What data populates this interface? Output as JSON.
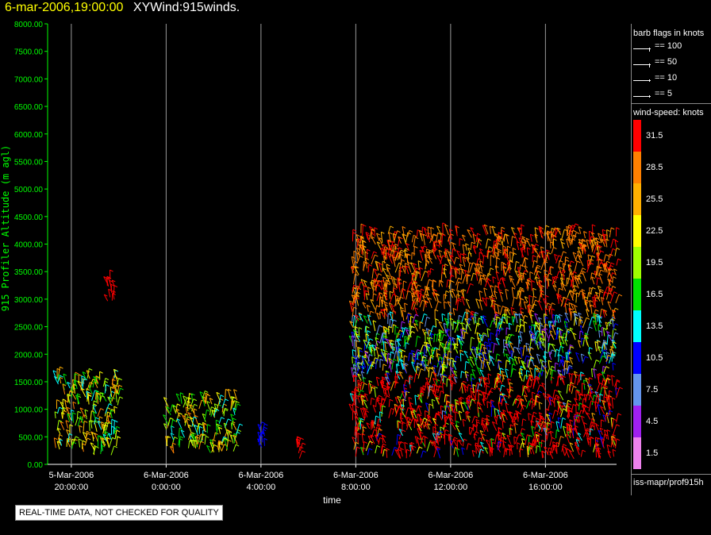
{
  "header": {
    "datetime": "6-mar-2006,19:00:00",
    "product": "XYWind:915winds."
  },
  "legend": {
    "flags_title": "barb flags in knots",
    "flags": [
      {
        "label": "== 100"
      },
      {
        "label": "== 50"
      },
      {
        "label": "== 10"
      },
      {
        "label": "== 5"
      }
    ],
    "speed_title": "wind-speed: knots",
    "speed_bins": [
      {
        "label": "31.5",
        "color": "#ff0000"
      },
      {
        "label": "28.5",
        "color": "#ff8000"
      },
      {
        "label": "25.5",
        "color": "#ffb000"
      },
      {
        "label": "22.5",
        "color": "#ffff00"
      },
      {
        "label": "19.5",
        "color": "#a0ff00"
      },
      {
        "label": "16.5",
        "color": "#00e000"
      },
      {
        "label": "13.5",
        "color": "#00ffff"
      },
      {
        "label": "10.5",
        "color": "#0000ff"
      },
      {
        "label": "7.5",
        "color": "#6495ed"
      },
      {
        "label": "4.5",
        "color": "#a020f0"
      },
      {
        "label": "1.5",
        "color": "#ee82ee"
      }
    ],
    "source": "iss-mapr/prof915h"
  },
  "notice": "REAL-TIME DATA, NOT CHECKED FOR QUALITY",
  "chart_data": {
    "type": "scatter",
    "xlabel": "time",
    "ylabel": "915 Profiler Altitude (m agl)",
    "ylim": [
      0,
      8000
    ],
    "xlim": [
      "5-Mar-2006 19:00",
      "6-Mar-2006 19:00"
    ],
    "grid": "vertical lines at time ticks",
    "yticks": [
      "0.00",
      "500.00",
      "1000.00",
      "1500.00",
      "2000.00",
      "2500.00",
      "3000.00",
      "3500.00",
      "4000.00",
      "4500.00",
      "5000.00",
      "5500.00",
      "6000.00",
      "6500.00",
      "7000.00",
      "7500.00",
      "8000.00"
    ],
    "xticks": [
      {
        "date": "5-Mar-2006",
        "time": "20:00:00"
      },
      {
        "date": "6-Mar-2006",
        "time": "0:00:00"
      },
      {
        "date": "6-Mar-2006",
        "time": "4:00:00"
      },
      {
        "date": "6-Mar-2006",
        "time": "8:00:00"
      },
      {
        "date": "6-Mar-2006",
        "time": "12:00:00"
      },
      {
        "date": "6-Mar-2006",
        "time": "16:00:00"
      }
    ],
    "series": [
      {
        "x_start": "5-Mar-2006 19:20",
        "x_end": "5-Mar-2006 22:00",
        "alt_min": 150,
        "alt_max": 1600,
        "speed": "mixed 13-28"
      },
      {
        "x_start": "5-Mar-2006 21:30",
        "x_end": "5-Mar-2006 21:50",
        "alt_min": 2950,
        "alt_max": 3400,
        "speed": 31.5
      },
      {
        "x_start": "6-Mar-2006 00:00",
        "x_end": "6-Mar-2006 03:00",
        "alt_min": 200,
        "alt_max": 1200,
        "speed": "mixed 22-31"
      },
      {
        "x_start": "6-Mar-2006 03:50",
        "x_end": "6-Mar-2006 04:10",
        "alt_min": 300,
        "alt_max": 650,
        "speed": 10.5
      },
      {
        "x_start": "6-Mar-2006 05:30",
        "x_end": "6-Mar-2006 05:40",
        "alt_min": 100,
        "alt_max": 400,
        "speed": 31.5
      },
      {
        "x_start": "6-Mar-2006 07:50",
        "x_end": "6-Mar-2006 19:00",
        "alt_min": 100,
        "alt_max": 4200,
        "speed": "mixed 4.5-31.5"
      }
    ]
  }
}
